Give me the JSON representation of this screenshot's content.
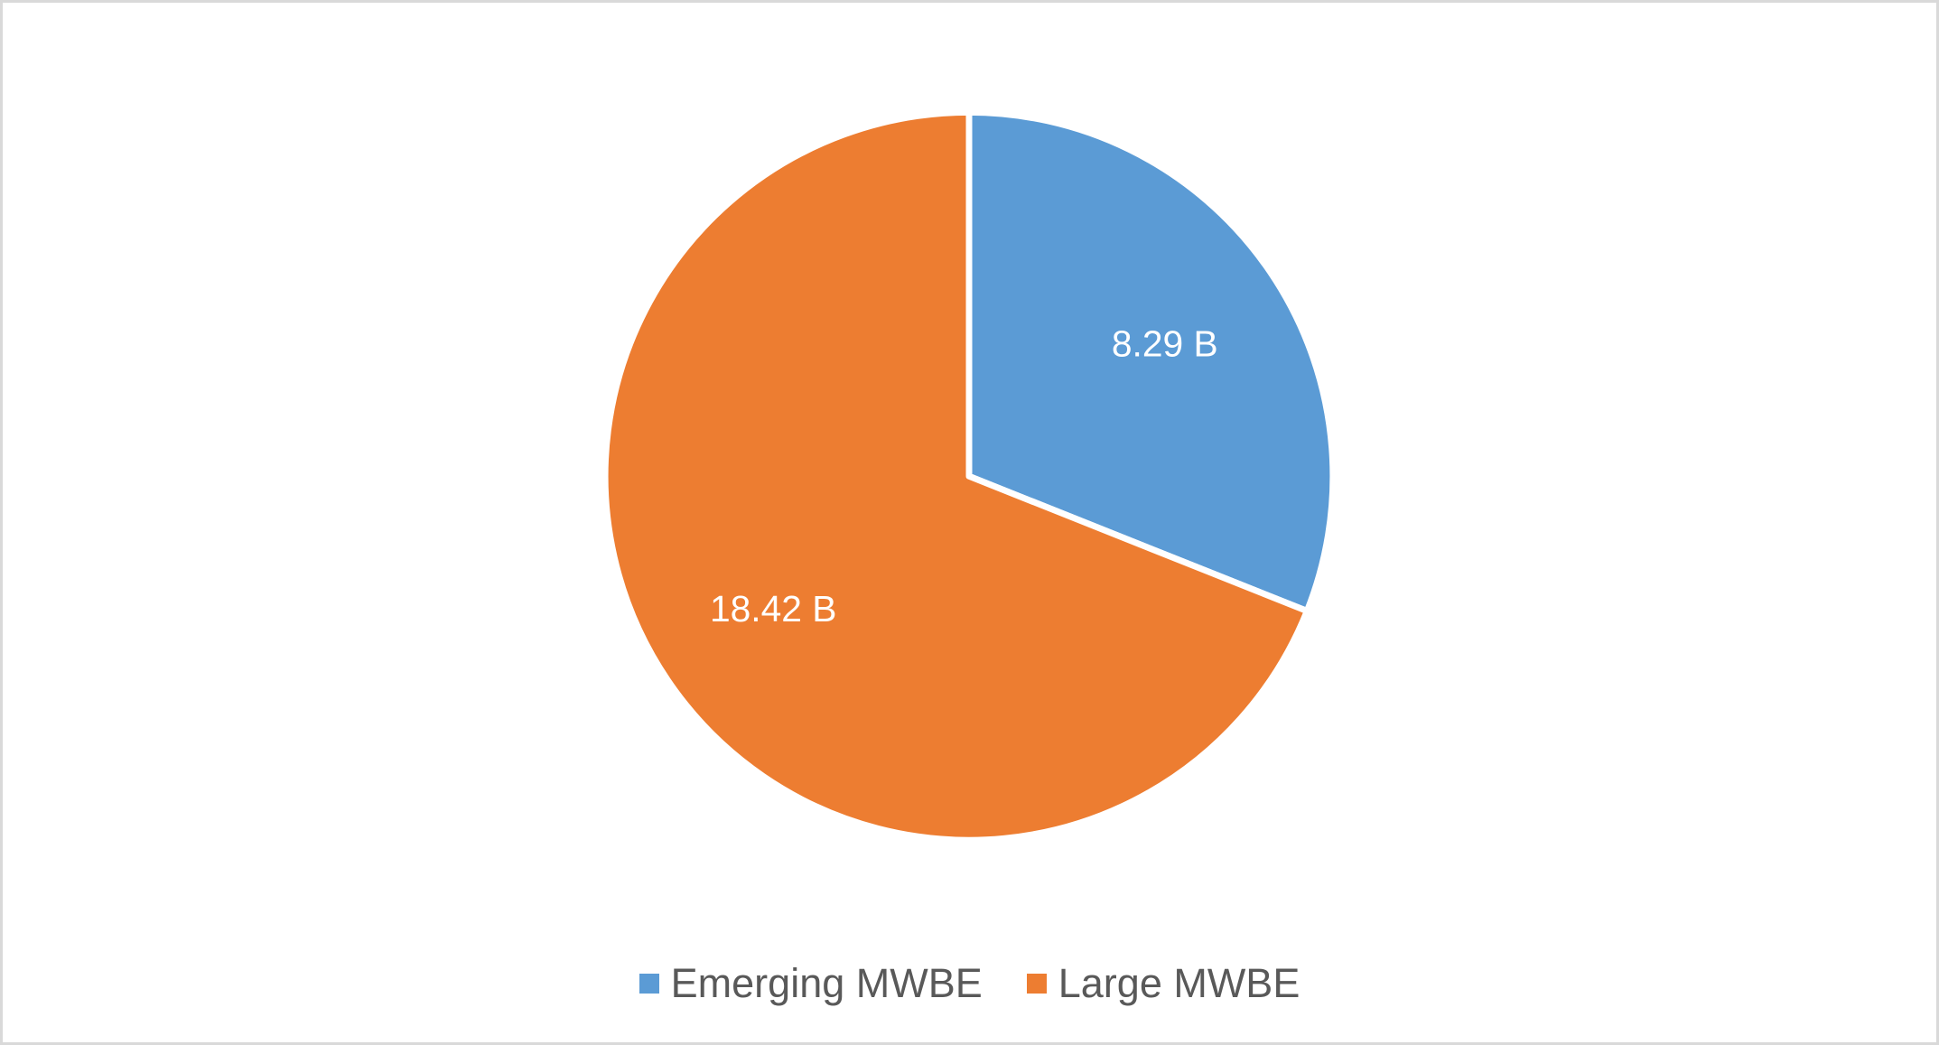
{
  "window": {
    "background_color": "#FFFFFF",
    "frame_border_color": "#D9D9D9"
  },
  "chart_data": {
    "type": "pie",
    "title": "",
    "slices": [
      {
        "label": "Emerging MWBE",
        "value": 8.29,
        "data_label": "8.29 B",
        "color": "#5B9BD5"
      },
      {
        "label": "Large MWBE",
        "value": 18.42,
        "data_label": "18.42 B",
        "color": "#ED7D31"
      }
    ],
    "start_angle_deg": 0,
    "direction": "clockwise",
    "separator_color": "#FFFFFF",
    "data_label_color": "#FFFFFF",
    "legend_position": "bottom",
    "legend_text_color": "#595959"
  }
}
